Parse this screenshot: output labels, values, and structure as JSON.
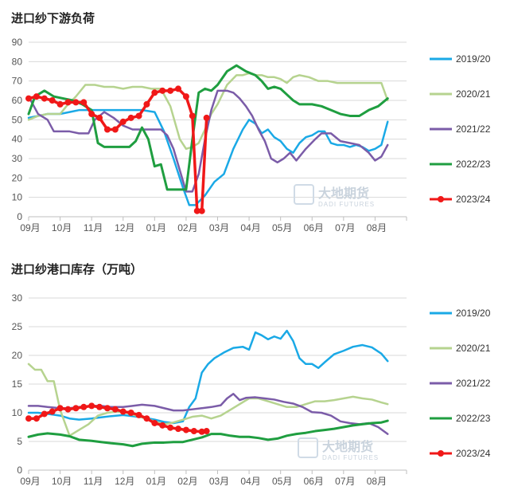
{
  "watermark": {
    "cn": "大地期货",
    "en": "DADI FUTURES"
  },
  "chart_data": [
    {
      "type": "line",
      "title": "进口纱下游负荷",
      "ylim": [
        0,
        90
      ],
      "yticks": [
        0,
        10,
        20,
        30,
        40,
        50,
        60,
        70,
        80,
        90
      ],
      "categories": [
        "09月",
        "10月",
        "11月",
        "12月",
        "01月",
        "02月",
        "03月",
        "04月",
        "05月",
        "06月",
        "07月",
        "08月"
      ],
      "grid": "horizontal",
      "legend_position": "right",
      "series": [
        {
          "name": "2019/20",
          "color": "#1aa9e6",
          "width": 2.5,
          "markers": false,
          "x": [
            0,
            0.3,
            0.6,
            1,
            1.3,
            1.6,
            2,
            2.3,
            2.6,
            3,
            3.3,
            3.6,
            4,
            4.3,
            4.6,
            4.9,
            5.1,
            5.3,
            5.6,
            5.9,
            6.2,
            6.5,
            6.8,
            7.0,
            7.2,
            7.4,
            7.6,
            7.8,
            8.0,
            8.2,
            8.4,
            8.6,
            8.8,
            9.0,
            9.2,
            9.4,
            9.6,
            9.8,
            10.0,
            10.2,
            10.4,
            10.6,
            10.8,
            11.0,
            11.2,
            11.4
          ],
          "y": [
            51,
            52,
            53,
            53,
            54,
            55,
            55,
            55,
            55,
            55,
            55,
            55,
            54,
            44,
            30,
            15,
            6,
            6,
            11,
            18,
            22,
            35,
            45,
            50,
            48,
            43,
            45,
            41,
            39,
            35,
            33,
            38,
            41,
            42,
            44,
            44,
            38,
            37,
            37,
            36,
            37,
            36,
            34,
            35,
            37,
            49
          ]
        },
        {
          "name": "2020/21",
          "color": "#b6d38f",
          "width": 2.5,
          "markers": false,
          "x": [
            0,
            0.3,
            0.6,
            1,
            1.2,
            1.5,
            1.8,
            2.1,
            2.4,
            2.7,
            3,
            3.3,
            3.6,
            3.9,
            4.2,
            4.5,
            4.8,
            5.0,
            5.2,
            5.4,
            5.6,
            5.8,
            6.0,
            6.3,
            6.6,
            6.8,
            7.0,
            7.2,
            7.4,
            7.6,
            7.8,
            8.0,
            8.2,
            8.4,
            8.6,
            8.9,
            9.2,
            9.5,
            9.8,
            10.1,
            10.4,
            10.7,
            11.0,
            11.2,
            11.4
          ],
          "y": [
            50,
            52,
            53,
            53,
            57,
            62,
            68,
            68,
            67,
            67,
            66,
            67,
            67,
            66,
            66,
            57,
            40,
            35,
            36,
            38,
            45,
            53,
            58,
            68,
            73,
            73,
            74,
            73,
            73,
            72,
            72,
            71,
            69,
            72,
            73,
            72,
            70,
            70,
            69,
            69,
            69,
            69,
            69,
            69,
            60
          ]
        },
        {
          "name": "2021/22",
          "color": "#7b5ca8",
          "width": 2.5,
          "markers": false,
          "x": [
            0,
            0.3,
            0.6,
            0.8,
            1,
            1.3,
            1.6,
            1.9,
            2.1,
            2.4,
            2.7,
            3,
            3.3,
            3.6,
            3.9,
            4.2,
            4.4,
            4.6,
            4.8,
            5.0,
            5.2,
            5.4,
            5.6,
            5.8,
            6.0,
            6.3,
            6.5,
            6.7,
            6.9,
            7.1,
            7.3,
            7.5,
            7.7,
            7.9,
            8.1,
            8.3,
            8.5,
            8.8,
            9.1,
            9.3,
            9.6,
            9.9,
            10.2,
            10.5,
            10.8,
            11.0,
            11.2,
            11.4
          ],
          "y": [
            62,
            53,
            50,
            44,
            44,
            44,
            43,
            43,
            50,
            54,
            51,
            47,
            45,
            45,
            45,
            45,
            42,
            35,
            24,
            13,
            13,
            22,
            40,
            55,
            65,
            65,
            64,
            61,
            57,
            52,
            45,
            39,
            30,
            28,
            30,
            33,
            29,
            35,
            40,
            43,
            43,
            39,
            38,
            37,
            33,
            29,
            31,
            37
          ]
        },
        {
          "name": "2022/23",
          "color": "#1f9e40",
          "width": 3,
          "markers": false,
          "x": [
            0,
            0.2,
            0.5,
            0.8,
            1.1,
            1.4,
            1.7,
            2.0,
            2.2,
            2.4,
            2.7,
            3.0,
            3.2,
            3.4,
            3.6,
            3.8,
            4.0,
            4.2,
            4.4,
            4.6,
            4.8,
            5.0,
            5.2,
            5.4,
            5.6,
            5.8,
            6.0,
            6.3,
            6.6,
            6.9,
            7.2,
            7.4,
            7.6,
            7.8,
            8.0,
            8.2,
            8.4,
            8.6,
            8.8,
            9.0,
            9.3,
            9.6,
            9.9,
            10.2,
            10.5,
            10.8,
            11.1,
            11.4
          ],
          "y": [
            53,
            62,
            65,
            62,
            61,
            60,
            58,
            55,
            38,
            36,
            36,
            36,
            36,
            39,
            46,
            40,
            26,
            27,
            14,
            14,
            14,
            14,
            40,
            64,
            66,
            65,
            68,
            75,
            78,
            75,
            73,
            70,
            66,
            67,
            66,
            63,
            60,
            58,
            58,
            58,
            57,
            55,
            53,
            52,
            52,
            55,
            57,
            61
          ]
        },
        {
          "name": "2023/24",
          "color": "#f01818",
          "width": 3.5,
          "markers": true,
          "x": [
            0,
            0.25,
            0.5,
            0.75,
            1.0,
            1.25,
            1.5,
            1.75,
            2.0,
            2.25,
            2.5,
            2.75,
            3.0,
            3.25,
            3.5,
            3.75,
            4.0,
            4.25,
            4.5,
            4.75,
            5.0,
            5.2,
            5.35,
            5.5,
            5.65
          ],
          "y": [
            61,
            62,
            61,
            60,
            58,
            59,
            59,
            59,
            53,
            51,
            45,
            45,
            49,
            51,
            52,
            58,
            64,
            65,
            65,
            66,
            62,
            52,
            3,
            3,
            51
          ]
        }
      ]
    },
    {
      "type": "line",
      "title": "进口纱港口库存（万吨）",
      "ylim": [
        0,
        30
      ],
      "yticks": [
        0,
        5,
        10,
        15,
        20,
        25,
        30
      ],
      "categories": [
        "09月",
        "10月",
        "11月",
        "12月",
        "01月",
        "02月",
        "03月",
        "04月",
        "05月",
        "06月",
        "07月",
        "08月"
      ],
      "grid": "horizontal",
      "legend_position": "right",
      "series": [
        {
          "name": "2019/20",
          "color": "#1aa9e6",
          "width": 2.5,
          "markers": false,
          "x": [
            0,
            0.3,
            0.6,
            1.0,
            1.3,
            1.6,
            2.0,
            2.3,
            2.6,
            3.0,
            3.3,
            3.6,
            4.0,
            4.3,
            4.6,
            4.9,
            5.1,
            5.3,
            5.5,
            5.7,
            5.9,
            6.2,
            6.5,
            6.8,
            7.0,
            7.2,
            7.4,
            7.6,
            7.8,
            8.0,
            8.2,
            8.4,
            8.6,
            8.8,
            9.0,
            9.2,
            9.4,
            9.7,
            10.0,
            10.3,
            10.6,
            10.9,
            11.2,
            11.4
          ],
          "y": [
            10,
            10,
            9.8,
            9.5,
            9,
            8.8,
            9,
            9.2,
            9.4,
            9.6,
            9.4,
            9.2,
            8.8,
            8.4,
            8.2,
            8.5,
            11,
            12.5,
            17,
            18.5,
            19.5,
            20.5,
            21.3,
            21.5,
            21,
            24,
            23.5,
            22.8,
            23.3,
            22.9,
            24.3,
            22.5,
            19.5,
            18.5,
            18.5,
            17.8,
            18.8,
            20.2,
            20.8,
            21.5,
            21.8,
            21.4,
            20.3,
            19
          ]
        },
        {
          "name": "2020/21",
          "color": "#b6d38f",
          "width": 2.5,
          "markers": false,
          "x": [
            0,
            0.2,
            0.4,
            0.6,
            0.8,
            1.0,
            1.3,
            1.6,
            1.9,
            2.2,
            2.5,
            2.8,
            3.1,
            3.4,
            3.7,
            4.0,
            4.3,
            4.6,
            4.9,
            5.2,
            5.5,
            5.8,
            6.1,
            6.4,
            6.7,
            7.0,
            7.3,
            7.6,
            7.9,
            8.2,
            8.5,
            8.8,
            9.1,
            9.4,
            9.7,
            10.0,
            10.3,
            10.6,
            10.9,
            11.2,
            11.4
          ],
          "y": [
            18.5,
            17.5,
            17.5,
            15.5,
            15.5,
            10.5,
            6,
            7,
            8,
            9.5,
            10,
            10.2,
            10,
            9.5,
            9,
            8.5,
            8,
            8.3,
            8.8,
            9.3,
            9.5,
            9,
            9.5,
            10.5,
            11.5,
            12.5,
            12.5,
            12,
            11.5,
            11,
            11,
            11.5,
            12,
            12,
            12.2,
            12.5,
            12.8,
            12.5,
            12.3,
            11.8,
            11.5
          ]
        },
        {
          "name": "2021/22",
          "color": "#7b5ca8",
          "width": 2.5,
          "markers": false,
          "x": [
            0,
            0.3,
            0.6,
            1.0,
            1.3,
            1.6,
            2.0,
            2.3,
            2.6,
            3.0,
            3.3,
            3.6,
            4.0,
            4.3,
            4.6,
            4.9,
            5.2,
            5.5,
            5.8,
            6.1,
            6.3,
            6.5,
            6.7,
            6.9,
            7.2,
            7.5,
            7.8,
            8.1,
            8.4,
            8.7,
            9.0,
            9.3,
            9.6,
            9.9,
            10.2,
            10.5,
            10.8,
            11.1,
            11.4
          ],
          "y": [
            11.2,
            11.2,
            11,
            10.8,
            10.8,
            11,
            11.2,
            11.2,
            11,
            11,
            11.2,
            11.4,
            11.2,
            10.8,
            10.4,
            10.4,
            10.6,
            10.8,
            11,
            11.3,
            12.5,
            13.3,
            12.2,
            12.6,
            12.7,
            12.5,
            12.3,
            11.9,
            11.6,
            11,
            10.1,
            10,
            9.5,
            8.5,
            8.2,
            8,
            8.2,
            7.5,
            6.3
          ]
        },
        {
          "name": "2022/23",
          "color": "#1f9e40",
          "width": 3,
          "markers": false,
          "x": [
            0,
            0.3,
            0.6,
            1.0,
            1.3,
            1.6,
            2.0,
            2.3,
            2.6,
            3.0,
            3.3,
            3.6,
            4.0,
            4.3,
            4.6,
            4.9,
            5.2,
            5.5,
            5.8,
            6.1,
            6.4,
            6.7,
            7.0,
            7.3,
            7.6,
            7.9,
            8.2,
            8.5,
            8.8,
            9.1,
            9.4,
            9.7,
            10.0,
            10.3,
            10.6,
            10.9,
            11.2,
            11.4
          ],
          "y": [
            5.8,
            6.2,
            6.4,
            6.2,
            5.9,
            5.3,
            5.1,
            4.9,
            4.7,
            4.5,
            4.2,
            4.6,
            4.8,
            4.8,
            4.9,
            4.9,
            5.3,
            5.7,
            6.3,
            6.3,
            6,
            5.8,
            5.8,
            5.6,
            5.3,
            5.5,
            6,
            6.3,
            6.5,
            6.8,
            7,
            7.2,
            7.5,
            7.8,
            8,
            8.2,
            8.3,
            8.6
          ]
        },
        {
          "name": "2023/24",
          "color": "#f01818",
          "width": 3.5,
          "markers": true,
          "x": [
            0,
            0.25,
            0.5,
            0.75,
            1.0,
            1.25,
            1.5,
            1.75,
            2.0,
            2.25,
            2.5,
            2.75,
            3.0,
            3.25,
            3.5,
            3.75,
            4.0,
            4.25,
            4.5,
            4.75,
            5.0,
            5.25,
            5.5,
            5.65
          ],
          "y": [
            9,
            9,
            9.8,
            10.2,
            10.8,
            10.6,
            10.8,
            11,
            11.2,
            11,
            10.8,
            10.6,
            10.2,
            10,
            9.6,
            9,
            8.2,
            7.8,
            7.4,
            7.2,
            7,
            6.8,
            6.7,
            6.8
          ]
        }
      ]
    }
  ]
}
